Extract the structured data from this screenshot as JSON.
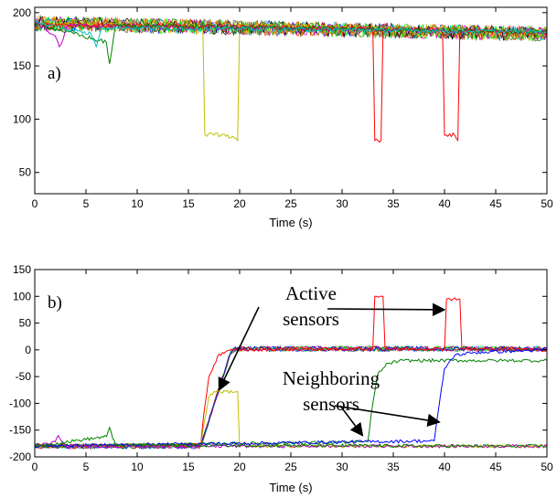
{
  "chart_data": [
    {
      "type": "line",
      "panel_label": "a)",
      "xlabel": "Time (s)",
      "ylabel": "",
      "xlim": [
        0,
        50
      ],
      "ylim": [
        30,
        205
      ],
      "x_ticks": [
        0,
        5,
        10,
        15,
        20,
        25,
        30,
        35,
        40,
        45,
        50
      ],
      "y_ticks": [
        50,
        100,
        150,
        200
      ],
      "grid": false,
      "background": {
        "description_band": "many noisy overlapping sensor traces",
        "start_level": 190,
        "end_level": 180,
        "spread": 7,
        "colors": [
          "#0000ff",
          "#ff0000",
          "#008000",
          "#00bfbf",
          "#bf00bf",
          "#bfbf00",
          "#000000",
          "#7f3f00",
          "#00ff00",
          "#ff7f00"
        ]
      },
      "series": [
        {
          "color": "#bfbf00",
          "x": [
            0,
            16.4,
            16.6,
            17.5,
            18.5,
            19.8,
            20.0,
            50
          ],
          "y": [
            190,
            187,
            86,
            85,
            86,
            80,
            188,
            182
          ]
        },
        {
          "color": "#ff0000",
          "x": [
            0,
            33.0,
            33.2,
            33.8,
            34.0,
            39.8,
            40.0,
            41.0,
            41.3,
            41.5,
            50
          ],
          "y": [
            189,
            185,
            80,
            80,
            184,
            184,
            85,
            85,
            80,
            183,
            181
          ]
        },
        {
          "color": "#bf00bf",
          "x": [
            0,
            2.0,
            2.4,
            2.8,
            3.2,
            50
          ],
          "y": [
            192,
            178,
            168,
            176,
            188,
            182
          ]
        },
        {
          "color": "#008000",
          "x": [
            0,
            7.0,
            7.3,
            7.6,
            7.9,
            50
          ],
          "y": [
            190,
            172,
            152,
            170,
            188,
            182
          ]
        },
        {
          "color": "#00bfbf",
          "x": [
            0,
            5.5,
            6.0,
            6.5,
            50
          ],
          "y": [
            191,
            180,
            168,
            186,
            182
          ]
        }
      ]
    },
    {
      "type": "line",
      "panel_label": "b)",
      "xlabel": "Time (s)",
      "ylabel": "",
      "xlim": [
        0,
        50
      ],
      "ylim": [
        -200,
        150
      ],
      "x_ticks": [
        0,
        5,
        10,
        15,
        20,
        25,
        30,
        35,
        40,
        45,
        50
      ],
      "y_ticks": [
        -200,
        -150,
        -100,
        -50,
        0,
        50,
        100,
        150
      ],
      "grid": false,
      "series": [
        {
          "color": "#ff0000",
          "x": [
            0,
            16.2,
            16.5,
            17.0,
            18.0,
            19.5,
            33.0,
            33.2,
            34.0,
            34.2,
            40.0,
            40.2,
            41.5,
            41.7,
            50
          ],
          "y": [
            -180,
            -178,
            -120,
            -50,
            -8,
            0,
            2,
            100,
            100,
            2,
            2,
            95,
            95,
            2,
            0
          ]
        },
        {
          "color": "#bfbf00",
          "x": [
            0,
            16.2,
            16.5,
            17.0,
            17.5,
            19.8,
            20.0,
            50
          ],
          "y": [
            -180,
            -178,
            -140,
            -88,
            -78,
            -78,
            -180,
            -180
          ]
        },
        {
          "color": "#008000",
          "x": [
            0,
            32.5,
            33.0,
            33.5,
            34.5,
            36.0,
            50
          ],
          "y": [
            -180,
            -172,
            -100,
            -45,
            -25,
            -20,
            -20
          ]
        },
        {
          "color": "#0000ff",
          "x": [
            0,
            39.0,
            39.5,
            40.0,
            41.0,
            43.0,
            50
          ],
          "y": [
            -180,
            -170,
            -100,
            -35,
            -10,
            -5,
            0
          ]
        },
        {
          "color": "#bf00bf",
          "x": [
            0,
            2.0,
            2.3,
            2.6,
            3.0,
            50
          ],
          "y": [
            -180,
            -172,
            -160,
            -170,
            -180,
            -180
          ]
        },
        {
          "color": "#008000",
          "x": [
            0,
            7.0,
            7.3,
            7.6,
            7.9,
            50
          ],
          "y": [
            -180,
            -162,
            -145,
            -165,
            -178,
            -180
          ]
        }
      ],
      "annotations": [
        {
          "text_lines": [
            "Active",
            "sensors"
          ],
          "arrows_to": [
            [
              18,
              -75
            ],
            [
              40,
              75
            ]
          ]
        },
        {
          "text_lines": [
            "Neighboring",
            "sensors"
          ],
          "arrows_to": [
            [
              32,
              -160
            ],
            [
              39.5,
              -135
            ]
          ]
        }
      ]
    }
  ]
}
